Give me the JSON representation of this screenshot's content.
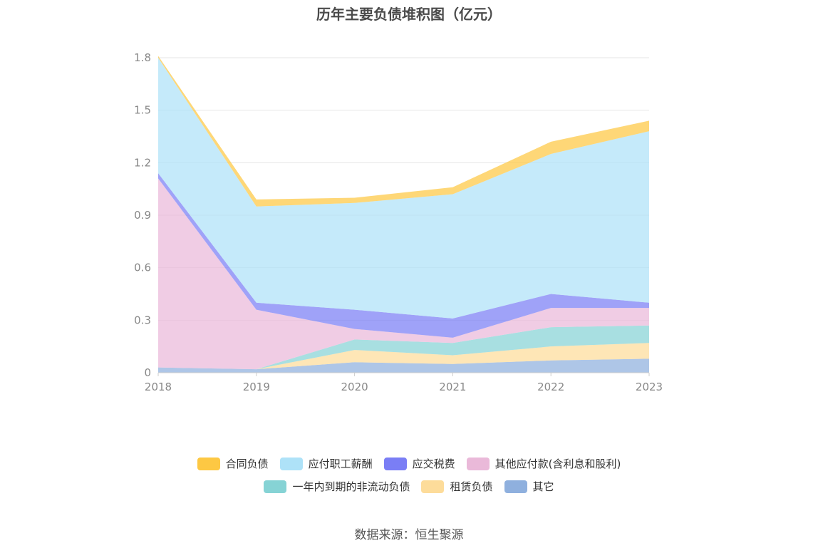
{
  "chart_data": {
    "type": "area",
    "title": "历年主要负债堆积图（亿元）",
    "categories": [
      "2018",
      "2019",
      "2020",
      "2021",
      "2022",
      "2023"
    ],
    "ylim": [
      0,
      1.8
    ],
    "yticks": [
      "0",
      "0.3",
      "0.6",
      "0.9",
      "1.2",
      "1.5",
      "1.8"
    ],
    "stacked": true,
    "grid": true,
    "legend_position": "bottom",
    "series": [
      {
        "name": "其它",
        "color": "#8fb0de",
        "values": [
          0.03,
          0.02,
          0.06,
          0.05,
          0.07,
          0.08
        ]
      },
      {
        "name": "租赁负债",
        "color": "#fddc9a",
        "values": [
          0.0,
          0.0,
          0.07,
          0.05,
          0.08,
          0.09
        ]
      },
      {
        "name": "一年内到期的非流动负债",
        "color": "#86d3d5",
        "values": [
          0.0,
          0.0,
          0.06,
          0.07,
          0.11,
          0.1
        ]
      },
      {
        "name": "其他应付款(含利息和股利)",
        "color": "#eab9d9",
        "values": [
          1.08,
          0.34,
          0.06,
          0.03,
          0.11,
          0.1
        ]
      },
      {
        "name": "应交税费",
        "color": "#7a7ef5",
        "values": [
          0.03,
          0.04,
          0.11,
          0.11,
          0.08,
          0.03
        ]
      },
      {
        "name": "应付职工薪酬",
        "color": "#aee2f8",
        "values": [
          0.66,
          0.55,
          0.61,
          0.71,
          0.8,
          0.98
        ]
      },
      {
        "name": "合同负债",
        "color": "#fdc843",
        "values": [
          0.01,
          0.04,
          0.03,
          0.04,
          0.07,
          0.06
        ]
      }
    ]
  },
  "legend_rows": [
    [
      {
        "label": "合同负债",
        "color": "#fdc843"
      },
      {
        "label": "应付职工薪酬",
        "color": "#aee2f8"
      },
      {
        "label": "应交税费",
        "color": "#7a7ef5"
      },
      {
        "label": "其他应付款(含利息和股利)",
        "color": "#eab9d9"
      }
    ],
    [
      {
        "label": "一年内到期的非流动负债",
        "color": "#86d3d5"
      },
      {
        "label": "租赁负债",
        "color": "#fddc9a"
      },
      {
        "label": "其它",
        "color": "#8fb0de"
      }
    ]
  ],
  "source": "数据来源：恒生聚源"
}
